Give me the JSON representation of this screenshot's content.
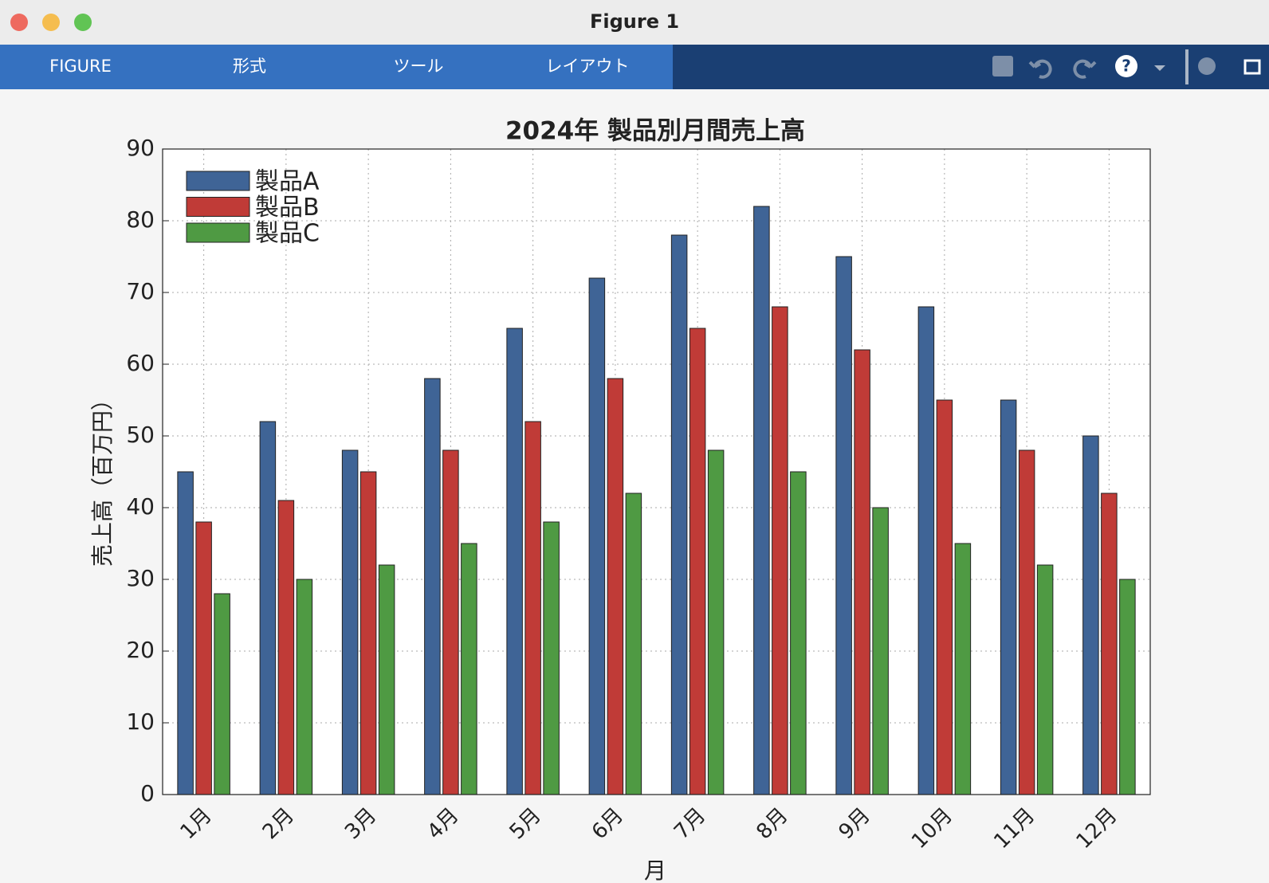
{
  "window": {
    "title": "Figure 1",
    "tabs": [
      "FIGURE",
      "形式",
      "ツール",
      "レイアウト"
    ]
  },
  "chart_data": {
    "type": "bar",
    "title": "2024年 製品別月間売上高",
    "x_label": "月",
    "y_label": "売上高（百万円）",
    "categories": [
      "1月",
      "2月",
      "3月",
      "4月",
      "5月",
      "6月",
      "7月",
      "8月",
      "9月",
      "10月",
      "11月",
      "12月"
    ],
    "series": [
      {
        "name": "製品A",
        "color": "#3f6496",
        "values": [
          45,
          52,
          48,
          58,
          65,
          72,
          78,
          82,
          75,
          68,
          55,
          50
        ]
      },
      {
        "name": "製品B",
        "color": "#c03b37",
        "values": [
          38,
          41,
          45,
          48,
          52,
          58,
          65,
          68,
          62,
          55,
          48,
          42
        ]
      },
      {
        "name": "製品C",
        "color": "#4f9a43",
        "values": [
          28,
          30,
          32,
          35,
          38,
          42,
          48,
          45,
          40,
          35,
          32,
          30
        ]
      }
    ],
    "ylim": [
      0,
      90
    ],
    "yticks": [
      0,
      10,
      20,
      30,
      40,
      50,
      60,
      70,
      80,
      90
    ],
    "grid": true,
    "legend": "upper left"
  }
}
